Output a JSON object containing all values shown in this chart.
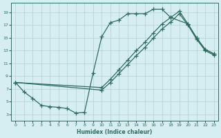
{
  "xlabel": "Humidex (Indice chaleur)",
  "line_color": "#2e6b5e",
  "bg_color": "#d6eef2",
  "grid_color": "#b0d0d8",
  "xlim": [
    -0.5,
    23.5
  ],
  "ylim": [
    2.0,
    20.5
  ],
  "xticks": [
    0,
    1,
    2,
    3,
    4,
    5,
    6,
    7,
    8,
    9,
    10,
    11,
    12,
    13,
    14,
    15,
    16,
    17,
    18,
    19,
    20,
    21,
    22,
    23
  ],
  "yticks": [
    3,
    5,
    7,
    9,
    11,
    13,
    15,
    17,
    19
  ],
  "line1_x": [
    0,
    1,
    2,
    3,
    4,
    5,
    6,
    7,
    8,
    9,
    10,
    11,
    12,
    13,
    14,
    15,
    16,
    17,
    18,
    20,
    21,
    22,
    23
  ],
  "line1_y": [
    8.0,
    6.5,
    5.5,
    4.4,
    4.2,
    4.1,
    3.9,
    3.2,
    3.3,
    9.5,
    15.2,
    17.4,
    17.8,
    18.8,
    18.8,
    18.8,
    19.5,
    19.5,
    18.2,
    17.2,
    15.0,
    13.2,
    12.5
  ],
  "line2_x": [
    0,
    10,
    11,
    12,
    13,
    14,
    15,
    16,
    17,
    18,
    19,
    20,
    21,
    22,
    23
  ],
  "line2_y": [
    8.0,
    7.2,
    8.5,
    10.0,
    11.5,
    13.0,
    14.3,
    15.8,
    17.2,
    18.2,
    19.2,
    17.2,
    15.0,
    13.2,
    12.5
  ],
  "line3_x": [
    0,
    10,
    11,
    12,
    13,
    14,
    15,
    16,
    17,
    18,
    19,
    20,
    21,
    22,
    23
  ],
  "line3_y": [
    8.0,
    6.8,
    8.0,
    9.4,
    10.8,
    12.2,
    13.5,
    15.0,
    16.4,
    17.5,
    18.8,
    17.0,
    14.8,
    13.0,
    12.3
  ]
}
